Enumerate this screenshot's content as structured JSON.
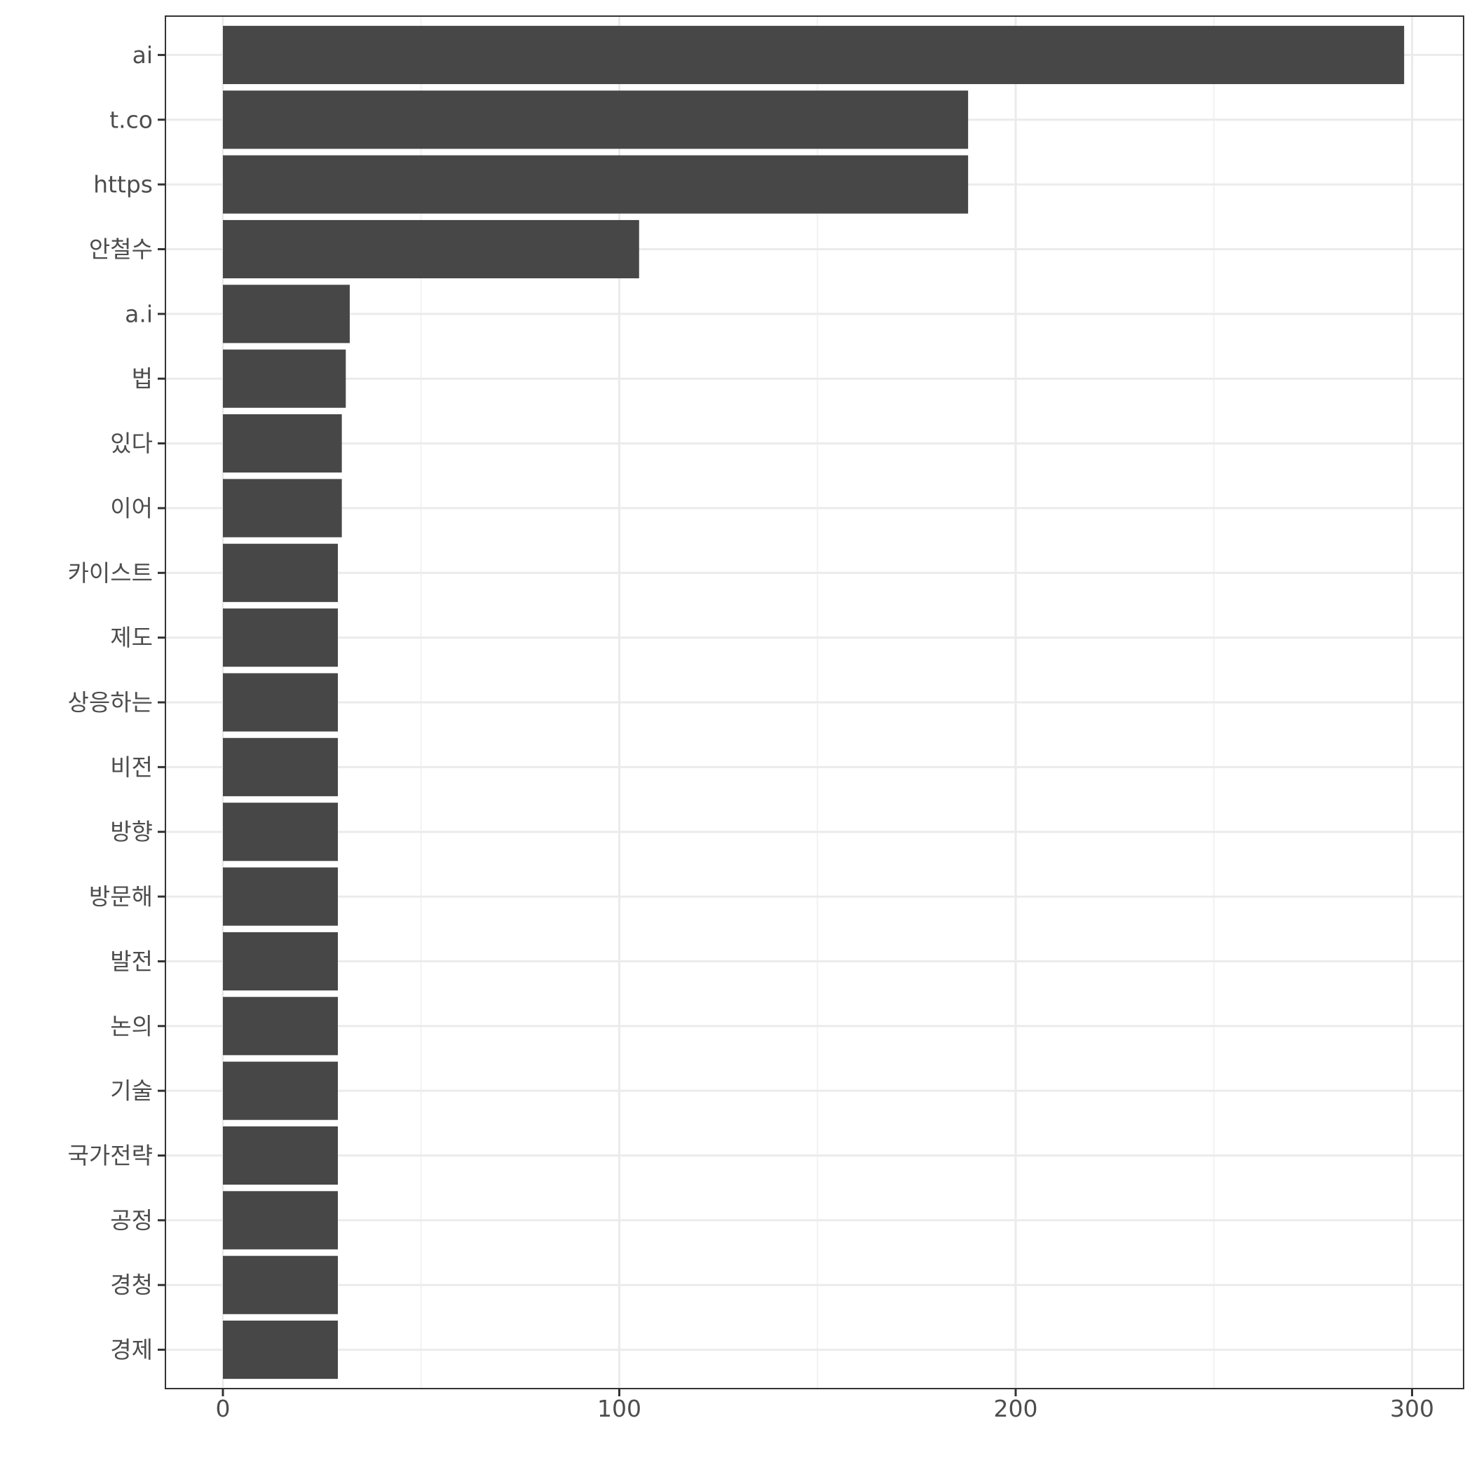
{
  "chart_data": {
    "type": "bar",
    "orientation": "horizontal",
    "title": "",
    "xlabel": "",
    "ylabel": "",
    "categories": [
      "ai",
      "t.co",
      "https",
      "안철수",
      "a.i",
      "법",
      "있다",
      "이어",
      "카이스트",
      "제도",
      "상응하는",
      "비전",
      "방향",
      "방문해",
      "발전",
      "논의",
      "기술",
      "국가전략",
      "공정",
      "경청",
      "경제"
    ],
    "values": [
      298,
      188,
      188,
      105,
      32,
      31,
      30,
      30,
      29,
      29,
      29,
      29,
      29,
      29,
      29,
      29,
      29,
      29,
      29,
      29,
      29
    ],
    "xlim": [
      -14.5,
      313
    ],
    "x_ticks": [
      0,
      100,
      200,
      300
    ],
    "x_tick_labels": [
      "0",
      "100",
      "200",
      "300"
    ],
    "grid": true,
    "bar_color": "#474747",
    "panel_border_color": "#333333",
    "grid_major_color": "#ebebeb",
    "grid_minor_color": "#f2f2f2",
    "tick_label_color": "#4d4d4d"
  }
}
